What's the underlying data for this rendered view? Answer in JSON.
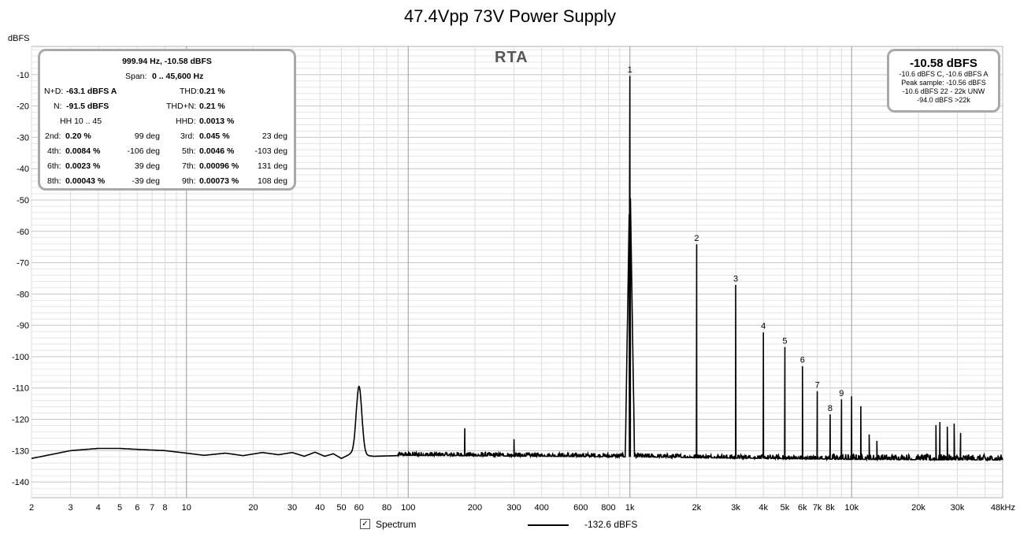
{
  "chart_data": {
    "type": "line",
    "title": "47.4Vpp 73V Power Supply",
    "ylabel": "dBFS",
    "x_scale": "log",
    "xlim_hz": [
      2,
      48000
    ],
    "ylim": [
      -145,
      -1
    ],
    "y_ticks": [
      -10,
      -20,
      -30,
      -40,
      -50,
      -60,
      -70,
      -80,
      -90,
      -100,
      -110,
      -120,
      -130,
      -140
    ],
    "y_tick_labels": [
      "-10",
      "-20",
      "-30",
      "-40",
      "-50",
      "-60",
      "-70",
      "-80",
      "-90",
      "-100",
      "-110",
      "-120",
      "-130",
      "-140"
    ],
    "x_ticks_hz": [
      2,
      3,
      4,
      5,
      6,
      7,
      8,
      10,
      20,
      30,
      40,
      50,
      60,
      80,
      100,
      200,
      300,
      400,
      600,
      800,
      1000,
      2000,
      3000,
      4000,
      5000,
      6000,
      7000,
      8000,
      10000,
      20000,
      30000,
      48000
    ],
    "x_tick_labels": [
      "2",
      "3",
      "4",
      "5",
      "6",
      "7",
      "8",
      "10",
      "20",
      "30",
      "40",
      "50",
      "60",
      "80",
      "100",
      "200",
      "300",
      "400",
      "600",
      "800",
      "1k",
      "2k",
      "3k",
      "4k",
      "5k",
      "6k",
      "7k",
      "8k",
      "10k",
      "20k",
      "30k",
      "48kHz"
    ],
    "grid": true,
    "overlay_label": "RTA",
    "series": [
      {
        "name": "Spectrum",
        "legend_value": "-132.6 dBFS",
        "color": "#000000",
        "baseline_points": [
          [
            2,
            -132.5
          ],
          [
            3,
            -130.0
          ],
          [
            4,
            -129.3
          ],
          [
            5,
            -129.3
          ],
          [
            6,
            -129.6
          ],
          [
            8,
            -130.0
          ],
          [
            10,
            -130.8
          ],
          [
            12,
            -131.5
          ],
          [
            15,
            -130.8
          ],
          [
            18,
            -131.6
          ],
          [
            22,
            -130.6
          ],
          [
            26,
            -131.3
          ],
          [
            30,
            -130.6
          ],
          [
            34,
            -131.8
          ],
          [
            38,
            -130.5
          ],
          [
            42,
            -131.8
          ],
          [
            46,
            -131.0
          ],
          [
            50,
            -132.5
          ],
          [
            55,
            -131.0
          ],
          [
            70,
            -131.8
          ],
          [
            100,
            -131.5
          ],
          [
            1000,
            -132.0
          ],
          [
            10000,
            -132.8
          ],
          [
            48000,
            -133.0
          ]
        ],
        "peaks": [
          {
            "hz": 60,
            "db": -109.5,
            "shape": "broad"
          },
          {
            "hz": 180,
            "db": -123.0
          },
          {
            "hz": 300,
            "db": -126.5
          },
          {
            "hz": 1000,
            "db": -10.58,
            "label": "1"
          },
          {
            "hz": 2000,
            "db": -64.3,
            "label": "2"
          },
          {
            "hz": 3000,
            "db": -77.3,
            "label": "3"
          },
          {
            "hz": 4000,
            "db": -92.4,
            "label": "4"
          },
          {
            "hz": 5000,
            "db": -97.1,
            "label": "5"
          },
          {
            "hz": 6000,
            "db": -103.2,
            "label": "6"
          },
          {
            "hz": 7000,
            "db": -111.2,
            "label": "7"
          },
          {
            "hz": 8000,
            "db": -118.6,
            "label": "8"
          },
          {
            "hz": 9000,
            "db": -113.8,
            "label": "9"
          },
          {
            "hz": 10000,
            "db": -112.8
          },
          {
            "hz": 11000,
            "db": -116.0
          },
          {
            "hz": 12000,
            "db": -125.0
          },
          {
            "hz": 13000,
            "db": -127.0
          },
          {
            "hz": 24000,
            "db": -122.0
          },
          {
            "hz": 25000,
            "db": -121.0
          },
          {
            "hz": 27000,
            "db": -122.5
          },
          {
            "hz": 29000,
            "db": -121.5
          },
          {
            "hz": 31000,
            "db": -124.5
          }
        ]
      }
    ]
  },
  "stats_box": {
    "line1": "999.94 Hz, -10.58 dBFS",
    "line2_label": "Span:",
    "line2_value": "0 .. 45,600 Hz",
    "nd_label": "N+D:",
    "nd_value": "-63.1 dBFS A",
    "thd_label": "THD:",
    "thd_value": "0.21 %",
    "n_label": "N:",
    "n_value": "-91.5 dBFS",
    "thdn_label": "THD+N:",
    "thdn_value": "0.21 %",
    "hh_label": "HH 10 .. 45",
    "hhd_label": "HHD:",
    "hhd_value": "0.0013 %",
    "harmonics": [
      {
        "l_label": "2nd:",
        "l_value": "0.20 %",
        "l_deg": "99 deg",
        "r_label": "3rd:",
        "r_value": "0.045 %",
        "r_deg": "23 deg"
      },
      {
        "l_label": "4th:",
        "l_value": "0.0084 %",
        "l_deg": "-106 deg",
        "r_label": "5th:",
        "r_value": "0.0046 %",
        "r_deg": "-103 deg"
      },
      {
        "l_label": "6th:",
        "l_value": "0.0023 %",
        "l_deg": "39 deg",
        "r_label": "7th:",
        "r_value": "0.00096 %",
        "r_deg": "131 deg"
      },
      {
        "l_label": "8th:",
        "l_value": "0.00043 %",
        "l_deg": "-39 deg",
        "r_label": "9th:",
        "r_value": "0.00073 %",
        "r_deg": "108 deg"
      }
    ]
  },
  "level_box": {
    "main": "-10.58 dBFS",
    "line1": "-10.6 dBFS C, -10.6 dBFS A",
    "line2": "Peak sample: -10.56 dBFS",
    "line3": "-10.6 dBFS 22 - 22k UNW",
    "line4": "-94.0 dBFS >22k"
  },
  "legend": {
    "checked_glyph": "✓",
    "series_name": "Spectrum",
    "series_value": "-132.6 dBFS"
  }
}
